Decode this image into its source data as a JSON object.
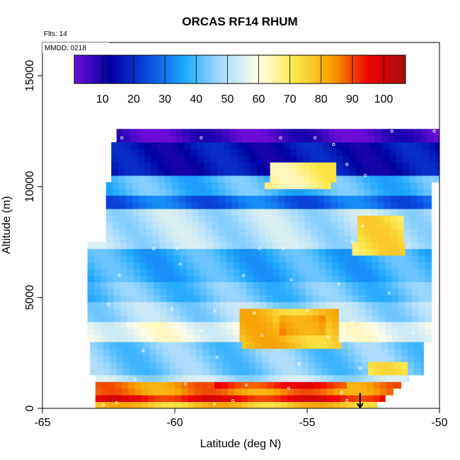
{
  "chart_data": {
    "type": "heatmap",
    "title": "ORCAS RF14 RHUM",
    "annotations": [
      "Flts: 14",
      "MMDD: 0218"
    ],
    "xlabel": "Latitude (deg N)",
    "ylabel": "Altitude (m)",
    "xlim": [
      -65,
      -50
    ],
    "ylim": [
      0,
      16500
    ],
    "x_ticks": [
      -65,
      -60,
      -55,
      -50
    ],
    "y_ticks": [
      0,
      5000,
      10000,
      15000
    ],
    "grid": false,
    "colorbar": {
      "placement": "top-inside",
      "range": [
        1,
        107
      ],
      "ticks": [
        10,
        20,
        30,
        40,
        50,
        60,
        70,
        80,
        90,
        100
      ],
      "colors": [
        "#6a0dd8",
        "#0000a0",
        "#0a4be0",
        "#1fa8ff",
        "#a8dcff",
        "#fffde8",
        "#fde94a",
        "#f6a000",
        "#f00000",
        "#a80f0f"
      ]
    },
    "bands": [
      {
        "alt_min": 12000,
        "alt_max": 12500,
        "rh": 5
      },
      {
        "alt_min": 10500,
        "alt_max": 12000,
        "rh": 15
      },
      {
        "alt_min": 9600,
        "alt_max": 10500,
        "rh": 40
      },
      {
        "alt_min": 9000,
        "alt_max": 9600,
        "rh": 28
      },
      {
        "alt_min": 7200,
        "alt_max": 9000,
        "rh": 50
      },
      {
        "alt_min": 5800,
        "alt_max": 7200,
        "rh": 38
      },
      {
        "alt_min": 4700,
        "alt_max": 5800,
        "rh": 42
      },
      {
        "alt_min": 4000,
        "alt_max": 4700,
        "rh": 48
      },
      {
        "alt_min": 2900,
        "alt_max": 4000,
        "rh": 58
      },
      {
        "alt_min": 1600,
        "alt_max": 2900,
        "rh": 44
      },
      {
        "alt_min": 1200,
        "alt_max": 1600,
        "rh": 50
      },
      {
        "alt_min": 700,
        "alt_max": 1200,
        "rh": 85
      },
      {
        "alt_min": 300,
        "alt_max": 700,
        "rh": 95
      },
      {
        "alt_min": 0,
        "alt_max": 300,
        "rh": 78
      }
    ],
    "features": [
      {
        "lat_min": -56.5,
        "lat_max": -54.0,
        "alt_min": 9900,
        "alt_max": 11200,
        "rh": 68
      },
      {
        "lat_min": -53.2,
        "lat_max": -51.3,
        "alt_min": 6800,
        "alt_max": 8600,
        "rh": 72
      },
      {
        "lat_min": -57.5,
        "lat_max": -53.8,
        "alt_min": 2600,
        "alt_max": 4500,
        "rh": 78
      },
      {
        "lat_min": -56.0,
        "lat_max": -54.2,
        "alt_min": 3300,
        "alt_max": 4300,
        "rh": 85
      },
      {
        "lat_min": -58.5,
        "lat_max": -53.5,
        "alt_min": 800,
        "alt_max": 1200,
        "rh": 93
      },
      {
        "lat_min": -52.6,
        "lat_max": -51.2,
        "alt_min": 1600,
        "alt_max": 2000,
        "rh": 70
      }
    ],
    "flight_track": [
      {
        "lat": -62.0,
        "alt": 12200
      },
      {
        "lat": -59.0,
        "alt": 12200
      },
      {
        "lat": -56.0,
        "alt": 12200
      },
      {
        "lat": -54.7,
        "alt": 12200
      },
      {
        "lat": -54.0,
        "alt": 11900
      },
      {
        "lat": -53.5,
        "alt": 11000
      },
      {
        "lat": -52.8,
        "alt": 10500
      },
      {
        "lat": -51.8,
        "alt": 12500
      },
      {
        "lat": -50.2,
        "alt": 12500
      },
      {
        "lat": -60.8,
        "alt": 7200
      },
      {
        "lat": -59.9,
        "alt": 7200
      },
      {
        "lat": -56.8,
        "alt": 7200
      },
      {
        "lat": -55.9,
        "alt": 7200
      },
      {
        "lat": -53.3,
        "alt": 7500
      },
      {
        "lat": -52.9,
        "alt": 8200
      },
      {
        "lat": -62.1,
        "alt": 6000
      },
      {
        "lat": -59.8,
        "alt": 6500
      },
      {
        "lat": -57.4,
        "alt": 6000
      },
      {
        "lat": -55.6,
        "alt": 5800
      },
      {
        "lat": -53.8,
        "alt": 5600
      },
      {
        "lat": -51.9,
        "alt": 5200
      },
      {
        "lat": -62.5,
        "alt": 4700
      },
      {
        "lat": -60.1,
        "alt": 4500
      },
      {
        "lat": -58.5,
        "alt": 4400
      },
      {
        "lat": -57.0,
        "alt": 4300
      },
      {
        "lat": -55.0,
        "alt": 4400
      },
      {
        "lat": -53.3,
        "alt": 3900
      },
      {
        "lat": -61.8,
        "alt": 3800
      },
      {
        "lat": -59.0,
        "alt": 3500
      },
      {
        "lat": -56.7,
        "alt": 3300
      },
      {
        "lat": -54.2,
        "alt": 3200
      },
      {
        "lat": -51.0,
        "alt": 3400
      },
      {
        "lat": -61.2,
        "alt": 2600
      },
      {
        "lat": -58.4,
        "alt": 2300
      },
      {
        "lat": -55.3,
        "alt": 2000
      },
      {
        "lat": -53.0,
        "alt": 1800
      },
      {
        "lat": -61.5,
        "alt": 1300
      },
      {
        "lat": -59.6,
        "alt": 1100
      },
      {
        "lat": -57.3,
        "alt": 1050
      },
      {
        "lat": -55.7,
        "alt": 900
      },
      {
        "lat": -53.7,
        "alt": 700
      },
      {
        "lat": -62.7,
        "alt": 150
      },
      {
        "lat": -62.2,
        "alt": 250
      },
      {
        "lat": -58.5,
        "alt": 200
      },
      {
        "lat": -57.8,
        "alt": 350
      },
      {
        "lat": -53.5,
        "alt": 350
      }
    ],
    "marker": {
      "lat": -53.0,
      "alt": 0,
      "symbol": "down-arrow"
    }
  }
}
